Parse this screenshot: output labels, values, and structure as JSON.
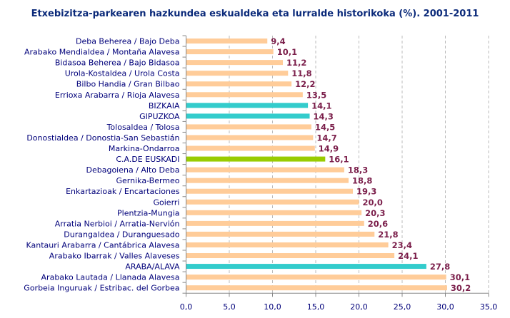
{
  "chart_data": {
    "type": "bar",
    "orientation": "horizontal",
    "title": "Etxebizitza-parkearen hazkundea eskualdeka eta lurralde historikoka (%). 2001-2011",
    "categories": [
      "Deba Beherea  /  Bajo Deba",
      "Arabako Mendialdea  /  Montaña Alavesa",
      "Bidasoa Beherea  /  Bajo Bidasoa",
      "Urola-Kostaldea  /  Urola Costa",
      "Bilbo Handia  /  Gran Bilbao",
      "Errioxa Arabarra  /  Rioja Alavesa",
      "BIZKAIA",
      "GIPUZKOA",
      "Tolosaldea  /  Tolosa",
      "Donostialdea  /  Donostia-San Sebastián",
      "Markina-Ondarroa",
      "C.A.DE EUSKADI",
      "Debagoiena  /  Alto Deba",
      "Gernika-Bermeo",
      "Enkartazioak  /  Encartaciones",
      "Goierri",
      "Plentzia-Mungia",
      "Arratia Nerbioi  /  Arratia-Nervión",
      "Durangaldea  /  Duranguesado",
      "Kantauri Arabarra  /  Cantábrica Alavesa",
      "Arabako Ibarrak  /  Valles Alaveses",
      "ARABA/ALAVA",
      "Arabako Lautada  /  Llanada Alavesa",
      "Gorbeia Inguruak  /  Estribac. del Gorbea"
    ],
    "values": [
      9.4,
      10.1,
      11.2,
      11.8,
      12.2,
      13.5,
      14.1,
      14.3,
      14.5,
      14.7,
      14.9,
      16.1,
      18.3,
      18.8,
      19.3,
      20.0,
      20.3,
      20.6,
      21.8,
      23.4,
      24.1,
      27.8,
      30.1,
      30.2
    ],
    "value_labels": [
      "9,4",
      "10,1",
      "11,2",
      "11,8",
      "12,2",
      "13,5",
      "14,1",
      "14,3",
      "14,5",
      "14,7",
      "14,9",
      "16,1",
      "18,3",
      "18,8",
      "19,3",
      "20,0",
      "20,3",
      "20,6",
      "21,8",
      "23,4",
      "24,1",
      "27,8",
      "30,1",
      "30,2"
    ],
    "kinds": [
      "r",
      "r",
      "r",
      "r",
      "r",
      "r",
      "t",
      "t",
      "r",
      "r",
      "r",
      "c",
      "r",
      "r",
      "r",
      "r",
      "r",
      "r",
      "r",
      "r",
      "r",
      "t",
      "r",
      "r"
    ],
    "colors": {
      "r": "#ffcc99",
      "t": "#33cccc",
      "c": "#99cc00"
    },
    "xlim": [
      0,
      35
    ],
    "xticks": [
      "0,0",
      "5,0",
      "10,0",
      "15,0",
      "20,0",
      "25,0",
      "30,0",
      "35,0"
    ],
    "grid": true,
    "legend": "none"
  }
}
